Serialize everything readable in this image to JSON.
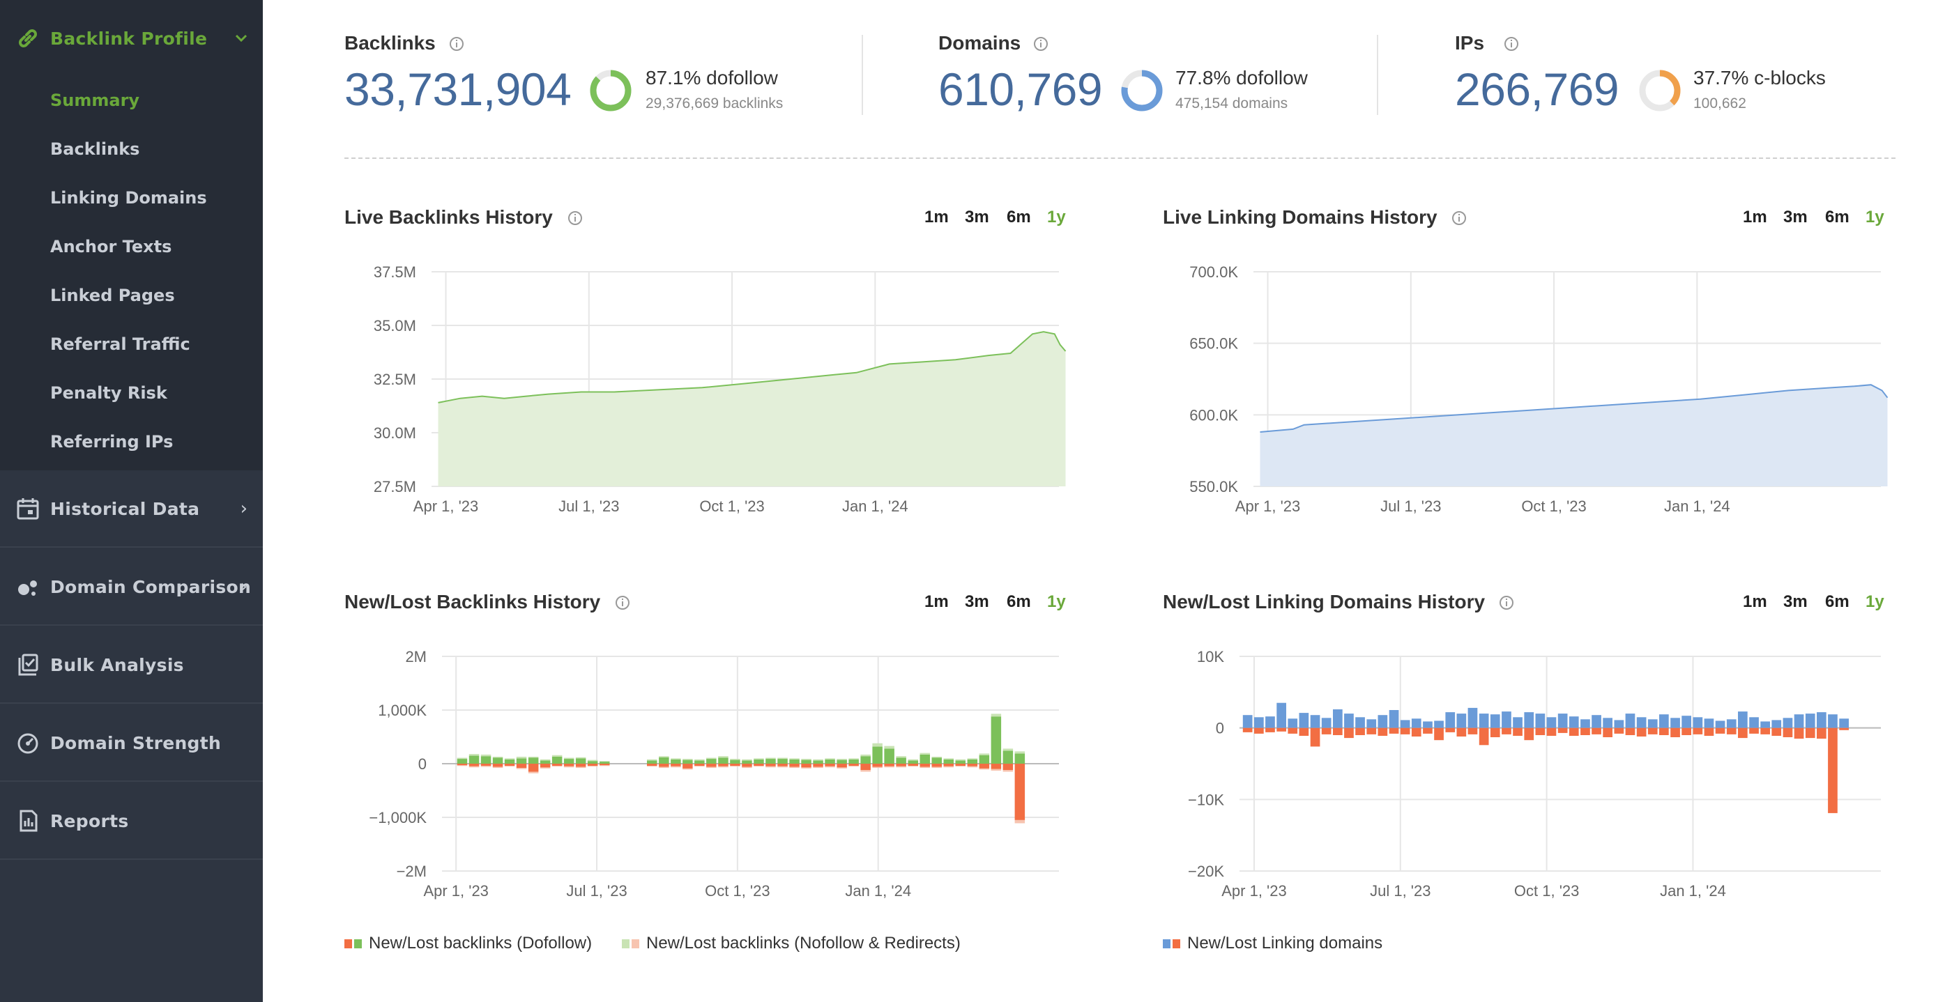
{
  "sidebar": {
    "section_backlink_profile": "Backlink Profile",
    "sub_items": [
      "Summary",
      "Backlinks",
      "Linking Domains",
      "Anchor Texts",
      "Linked Pages",
      "Referral Traffic",
      "Penalty Risk",
      "Referring IPs"
    ],
    "active_sub": "Summary",
    "sections": [
      "Historical Data",
      "Domain Comparison",
      "Bulk Analysis",
      "Domain Strength",
      "Reports"
    ]
  },
  "stats": {
    "backlinks": {
      "title": "Backlinks",
      "value": "33,731,904",
      "pct_label": "87.1% dofollow",
      "sub": "29,376,669 backlinks",
      "fraction": 0.871,
      "color": "#7cc05a"
    },
    "domains": {
      "title": "Domains",
      "value": "610,769",
      "pct_label": "77.8% dofollow",
      "sub": "475,154 domains",
      "fraction": 0.778,
      "color": "#6a9bd8"
    },
    "ips": {
      "title": "IPs",
      "value": "266,769",
      "pct_label": "37.7% c-blocks",
      "sub": "100,662",
      "fraction": 0.377,
      "color": "#f0a04b"
    }
  },
  "range_options": [
    "1m",
    "3m",
    "6m",
    "1y"
  ],
  "active_range": "1y",
  "x_ticks": [
    "Apr 1, '23",
    "Jul 1, '23",
    "Oct 1, '23",
    "Jan 1, '24"
  ],
  "colors": {
    "green": "#7cc05a",
    "green_fill": "#e3efd9",
    "blue": "#6a9bd8",
    "blue_fill": "#dde7f4",
    "orange": "#f26e43",
    "light_green": "#c9e3b4",
    "light_orange": "#f7c4b0",
    "accent": "#6aa83a"
  },
  "charts": {
    "live_backlinks": {
      "title": "Live Backlinks History"
    },
    "live_domains": {
      "title": "Live Linking Domains History"
    },
    "newlost_backlinks": {
      "title": "New/Lost Backlinks History",
      "legend": [
        "New/Lost backlinks (Dofollow)",
        "New/Lost backlinks (Nofollow & Redirects)"
      ]
    },
    "newlost_domains": {
      "title": "New/Lost Linking Domains History",
      "legend": [
        "New/Lost Linking domains"
      ]
    }
  },
  "chart_data": [
    {
      "id": "live_backlinks",
      "type": "area",
      "title": "Live Backlinks History",
      "y_ticks": [
        "37.5M",
        "35.0M",
        "32.5M",
        "30.0M",
        "27.5M"
      ],
      "ylim": [
        27.5,
        37.5
      ],
      "unit": "M",
      "x": [
        0,
        2,
        4,
        6,
        8,
        10,
        13,
        16,
        20,
        24,
        28,
        32,
        36,
        38,
        41,
        44,
        47,
        50,
        52,
        54,
        55,
        56,
        56.5,
        57
      ],
      "values": [
        31.4,
        31.6,
        31.7,
        31.6,
        31.7,
        31.8,
        31.9,
        31.9,
        32.0,
        32.1,
        32.3,
        32.5,
        32.7,
        32.8,
        33.2,
        33.3,
        33.4,
        33.6,
        33.7,
        34.6,
        34.7,
        34.6,
        34.1,
        33.8
      ],
      "fill_color": "#e3efd9",
      "line_color": "#7cc05a"
    },
    {
      "id": "live_domains",
      "type": "area",
      "title": "Live Linking Domains History",
      "y_ticks": [
        "700.0K",
        "650.0K",
        "600.0K",
        "550.0K"
      ],
      "ylim": [
        550,
        700
      ],
      "unit": "K",
      "x": [
        0,
        3,
        4,
        8,
        12,
        16,
        20,
        24,
        28,
        32,
        36,
        40,
        44,
        48,
        52,
        54,
        55.5,
        56.5,
        57
      ],
      "values": [
        588,
        590,
        593,
        595,
        597,
        599,
        601,
        603,
        605,
        607,
        609,
        611,
        614,
        617,
        619,
        620,
        621,
        617,
        612
      ],
      "fill_color": "#dde7f4",
      "line_color": "#6a9bd8"
    },
    {
      "id": "newlost_backlinks",
      "type": "bar",
      "title": "New/Lost Backlinks History",
      "y_ticks": [
        "2M",
        "1,000K",
        "0",
        "−1,000K",
        "−2M"
      ],
      "ylim": [
        -2000,
        2000
      ],
      "unit": "K",
      "series": [
        {
          "name": "New/Lost backlinks (Dofollow)",
          "new": [
            90,
            150,
            140,
            110,
            80,
            100,
            110,
            60,
            130,
            90,
            100,
            50,
            40,
            0,
            0,
            0,
            60,
            120,
            80,
            70,
            60,
            90,
            110,
            70,
            60,
            80,
            90,
            90,
            80,
            70,
            60,
            80,
            70,
            80,
            140,
            320,
            280,
            110,
            60,
            170,
            110,
            80,
            60,
            80,
            160,
            880,
            240,
            190,
            0
          ],
          "lost": [
            -30,
            -50,
            -40,
            -60,
            -40,
            -80,
            -150,
            -70,
            -40,
            -50,
            -60,
            -40,
            -30,
            0,
            0,
            0,
            -40,
            -60,
            -50,
            -90,
            -40,
            -60,
            -50,
            -40,
            -60,
            -40,
            -50,
            -50,
            -60,
            -70,
            -60,
            -50,
            -70,
            -40,
            -120,
            -60,
            -50,
            -50,
            -40,
            -60,
            -60,
            -50,
            -40,
            -50,
            -90,
            -100,
            -120,
            -1050,
            0
          ]
        },
        {
          "name": "New/Lost backlinks (Nofollow & Redirects)",
          "new": [
            20,
            30,
            30,
            20,
            20,
            30,
            20,
            20,
            30,
            20,
            20,
            20,
            10,
            0,
            0,
            0,
            20,
            20,
            20,
            20,
            20,
            20,
            30,
            20,
            20,
            20,
            20,
            20,
            20,
            20,
            20,
            20,
            20,
            20,
            30,
            60,
            50,
            30,
            20,
            30,
            20,
            20,
            20,
            20,
            30,
            50,
            40,
            40,
            0
          ],
          "lost": [
            -10,
            -20,
            -20,
            -20,
            -10,
            -20,
            -30,
            -20,
            -10,
            -20,
            -20,
            -10,
            -10,
            0,
            0,
            0,
            -10,
            -20,
            -20,
            -20,
            -10,
            -20,
            -20,
            -10,
            -20,
            -10,
            -20,
            -20,
            -20,
            -20,
            -20,
            -20,
            -20,
            -10,
            -30,
            -20,
            -20,
            -20,
            -10,
            -20,
            -20,
            -20,
            -10,
            -20,
            -20,
            -30,
            -30,
            -60,
            0
          ]
        }
      ],
      "x_start_offset": 1.4,
      "weeks": 49
    },
    {
      "id": "newlost_domains",
      "type": "bar",
      "title": "New/Lost Linking Domains History",
      "y_ticks": [
        "10K",
        "0",
        "−10K",
        "−20K"
      ],
      "ylim": [
        -20,
        10
      ],
      "unit": "K",
      "series": [
        {
          "name": "New/Lost Linking domains",
          "new": [
            1.8,
            1.5,
            1.6,
            3.5,
            1.3,
            2.1,
            1.8,
            1.4,
            2.6,
            2.0,
            1.5,
            1.2,
            1.8,
            2.5,
            1.1,
            1.3,
            0.9,
            1.0,
            2.2,
            2.0,
            2.8,
            2.0,
            1.9,
            2.3,
            1.5,
            2.2,
            2.0,
            1.5,
            2.0,
            1.6,
            1.2,
            1.8,
            1.4,
            1.1,
            2.0,
            1.5,
            1.2,
            1.9,
            1.4,
            1.7,
            1.5,
            1.3,
            1.0,
            1.2,
            2.3,
            1.5,
            0.9,
            1.1,
            1.4,
            1.9,
            2.0,
            2.2,
            1.9,
            1.3
          ],
          "lost": [
            -0.6,
            -0.8,
            -0.6,
            -0.5,
            -0.8,
            -1.1,
            -2.6,
            -0.9,
            -1.0,
            -1.4,
            -1.0,
            -0.9,
            -1.1,
            -0.8,
            -0.9,
            -1.2,
            -0.8,
            -1.7,
            -0.6,
            -1.2,
            -0.9,
            -2.4,
            -1.3,
            -0.9,
            -1.1,
            -1.7,
            -1.0,
            -1.1,
            -0.7,
            -1.1,
            -1.0,
            -0.9,
            -1.3,
            -0.8,
            -1.0,
            -1.2,
            -0.9,
            -1.0,
            -1.3,
            -1.0,
            -0.9,
            -1.1,
            -0.8,
            -0.9,
            -1.4,
            -0.8,
            -0.9,
            -1.1,
            -1.3,
            -1.5,
            -1.4,
            -1.5,
            -11.9,
            -0.3
          ]
        }
      ],
      "x_start_offset": 0.3,
      "weeks": 54
    }
  ]
}
